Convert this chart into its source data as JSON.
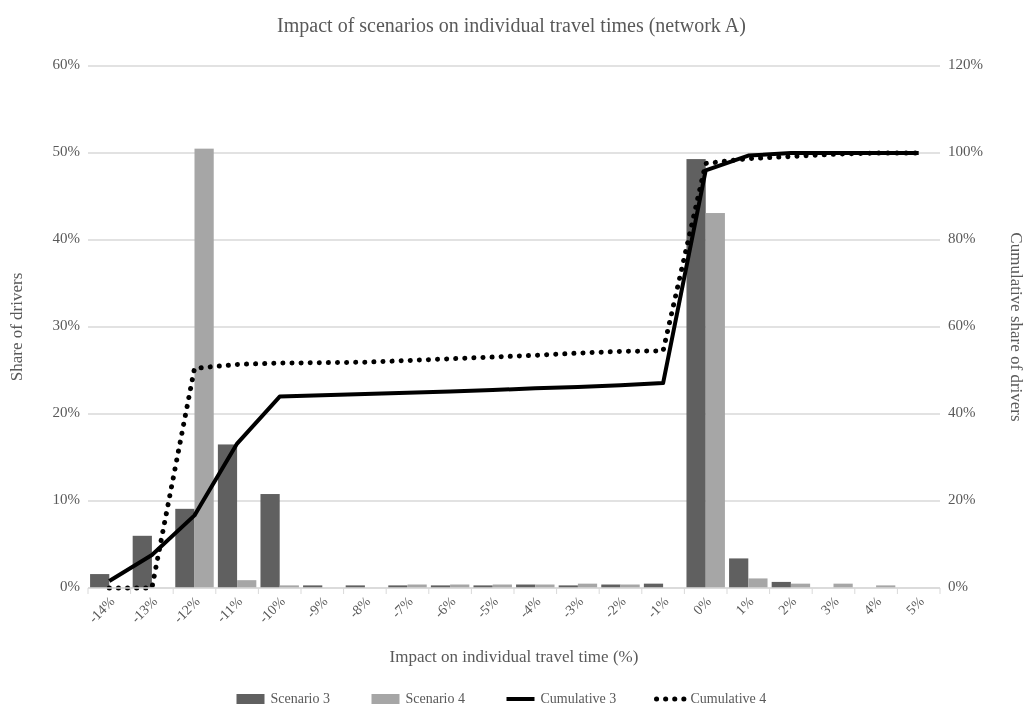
{
  "chart_data": {
    "type": "bar",
    "title": "Impact of scenarios on individual travel times (network A)",
    "xlabel": "Impact on individual travel time (%)",
    "ylabel": "Share of drivers",
    "y2label": "Cumulative share of drivers",
    "categories": [
      "-14%",
      "-13%",
      "-12%",
      "-11%",
      "-10%",
      "-9%",
      "-8%",
      "-7%",
      "-6%",
      "-5%",
      "-4%",
      "-3%",
      "-2%",
      "-1%",
      "0%",
      "1%",
      "2%",
      "3%",
      "4%",
      "5%"
    ],
    "series": [
      {
        "name": "Scenario 3",
        "color": "#606060",
        "values": [
          1.6,
          6.0,
          9.1,
          16.5,
          10.8,
          0.3,
          0.3,
          0.3,
          0.3,
          0.3,
          0.4,
          0.3,
          0.4,
          0.5,
          49.3,
          3.4,
          0.7,
          0,
          0,
          0
        ]
      },
      {
        "name": "Scenario 4",
        "color": "#a6a6a6",
        "values": [
          0,
          0,
          50.5,
          0.9,
          0.3,
          null,
          null,
          0.4,
          0.4,
          0.4,
          0.4,
          0.5,
          0.4,
          null,
          43.1,
          1.1,
          0.5,
          0.5,
          0.3,
          null
        ]
      },
      {
        "name": "Cumulative 3",
        "type": "line",
        "axis": "y2",
        "color": "#000000",
        "line_style": "solid",
        "values": [
          1.6,
          7.6,
          16.7,
          33.2,
          44.0,
          44.3,
          44.6,
          44.9,
          45.2,
          45.5,
          45.9,
          46.2,
          46.6,
          47.1,
          96.0,
          99.4,
          100,
          100,
          100,
          100
        ]
      },
      {
        "name": "Cumulative 4",
        "type": "line",
        "axis": "y2",
        "color": "#000000",
        "line_style": "dotted",
        "values": [
          0,
          0,
          50.5,
          51.4,
          51.7,
          51.8,
          51.9,
          52.3,
          52.7,
          53.1,
          53.5,
          54.0,
          54.4,
          54.5,
          97.6,
          98.7,
          99.2,
          99.7,
          100,
          100
        ]
      }
    ],
    "ylim": [
      0,
      60
    ],
    "yticks": [
      {
        "value": 0,
        "label": "0%"
      },
      {
        "value": 10,
        "label": "10%"
      },
      {
        "value": 20,
        "label": "20%"
      },
      {
        "value": 30,
        "label": "30%"
      },
      {
        "value": 40,
        "label": "40%"
      },
      {
        "value": 50,
        "label": "50%"
      },
      {
        "value": 60,
        "label": "60%"
      }
    ],
    "y2lim": [
      0,
      120
    ],
    "y2ticks": [
      {
        "value": 0,
        "label": "0%"
      },
      {
        "value": 20,
        "label": "20%"
      },
      {
        "value": 40,
        "label": "40%"
      },
      {
        "value": 60,
        "label": "60%"
      },
      {
        "value": 80,
        "label": "80%"
      },
      {
        "value": 100,
        "label": "100%"
      },
      {
        "value": 120,
        "label": "120%"
      }
    ],
    "grid": "y",
    "legend": "bottom"
  }
}
